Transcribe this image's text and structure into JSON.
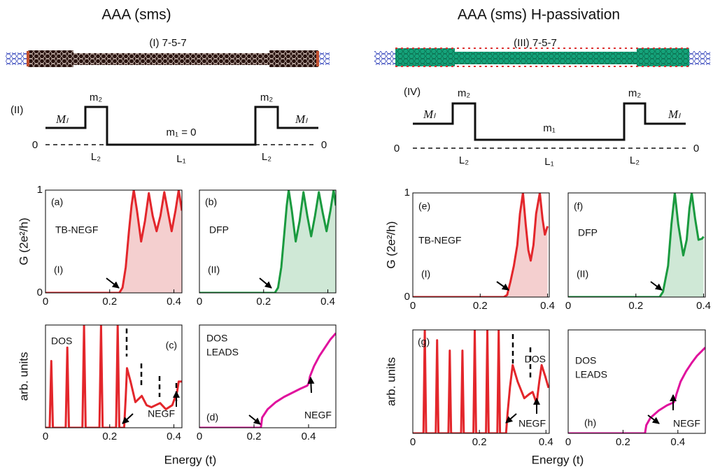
{
  "figures": [
    {
      "title": "AAA (sms)",
      "ribbon_label": "(I)  7-5-7",
      "schematic": {
        "label": "(II)",
        "lead": "Mₗ",
        "barrier": "m₂",
        "well": "m₁ = 0",
        "zero": "0",
        "barrier_width": "L₂",
        "well_width": "L₁"
      },
      "x_label": "Energy (t)"
    },
    {
      "title": "AAA (sms) H-passivation",
      "ribbon_label": "(III)  7-5-7",
      "schematic": {
        "label": "(IV)",
        "lead": "Mₗ",
        "barrier": "m₂",
        "well": "m₁",
        "zero": "0",
        "barrier_width": "L₂",
        "well_width": "L₁"
      },
      "x_label": "Energy (t)"
    }
  ],
  "chart_data": [
    {
      "type": "line",
      "annotations": [
        "(a)",
        "TB-NEGF",
        "(I)"
      ],
      "ylabel": "G (2e²/h)",
      "color": "#e3262b",
      "fill_color": "#f4cfcf",
      "x": [
        0,
        0.2,
        0.23,
        0.24,
        0.25,
        0.26,
        0.268,
        0.275,
        0.285,
        0.298,
        0.31,
        0.322,
        0.334,
        0.346,
        0.358,
        0.37,
        0.382,
        0.393,
        0.405,
        0.415,
        0.425
      ],
      "values": [
        0,
        0,
        0,
        0.05,
        0.25,
        0.6,
        0.85,
        1.0,
        0.8,
        0.5,
        0.7,
        0.97,
        0.75,
        0.6,
        0.75,
        0.98,
        0.78,
        0.6,
        0.8,
        1.0,
        0.8
      ],
      "xlim": [
        0,
        0.425
      ],
      "ylim": [
        0,
        1
      ],
      "xticks": [
        0,
        0.2,
        0.4
      ],
      "yticks": [
        0,
        1
      ]
    },
    {
      "type": "line",
      "annotations": [
        "(b)",
        "DFP",
        "(II)"
      ],
      "color": "#1a9a3f",
      "fill_color": "#cfe8d6",
      "x": [
        0,
        0.2,
        0.235,
        0.245,
        0.255,
        0.265,
        0.272,
        0.278,
        0.288,
        0.3,
        0.312,
        0.324,
        0.336,
        0.348,
        0.36,
        0.372,
        0.384,
        0.396,
        0.408,
        0.418,
        0.425
      ],
      "values": [
        0,
        0,
        0,
        0.05,
        0.25,
        0.6,
        0.85,
        1.0,
        0.8,
        0.5,
        0.7,
        0.98,
        0.75,
        0.55,
        0.75,
        0.98,
        0.78,
        0.6,
        0.8,
        1.0,
        0.85
      ],
      "xlim": [
        0,
        0.425
      ],
      "ylim": [
        0,
        1
      ],
      "xticks": [
        0,
        0.2,
        0.4
      ]
    },
    {
      "type": "line",
      "annotations": [
        "DOS",
        "(c)",
        "NEGF"
      ],
      "ylabel": "arb. units",
      "color": "#e3262b",
      "x": [
        0,
        0.013,
        0.018,
        0.023,
        0.063,
        0.068,
        0.073,
        0.115,
        0.12,
        0.125,
        0.168,
        0.173,
        0.178,
        0.22,
        0.225,
        0.23,
        0.245,
        0.25,
        0.254,
        0.265,
        0.28,
        0.3,
        0.315,
        0.33,
        0.357,
        0.375,
        0.395,
        0.41,
        0.415,
        0.42,
        0.425
      ],
      "values": [
        0,
        0,
        0.65,
        0,
        0,
        0.78,
        0,
        0,
        1,
        0,
        0,
        1,
        0,
        0,
        1,
        0,
        0,
        0.3,
        0.58,
        0.45,
        0.25,
        0.31,
        0.22,
        0.2,
        0.24,
        0.18,
        0.22,
        0.35,
        0.45,
        0.45,
        0.45
      ],
      "xlim": [
        0,
        0.425
      ],
      "ylim": [
        0,
        1
      ],
      "xticks": [
        0,
        0.2,
        0.4
      ]
    },
    {
      "type": "line",
      "annotations": [
        "DOS",
        "LEADS",
        "(d)",
        "NEGF"
      ],
      "color": "#e0119d",
      "x": [
        0,
        0.1,
        0.2,
        0.225,
        0.23,
        0.25,
        0.28,
        0.31,
        0.34,
        0.37,
        0.395,
        0.4,
        0.405,
        0.42,
        0.44,
        0.46,
        0.48,
        0.5
      ],
      "values": [
        0,
        0,
        0,
        0,
        0.1,
        0.18,
        0.25,
        0.3,
        0.34,
        0.38,
        0.41,
        0.43,
        0.5,
        0.6,
        0.7,
        0.78,
        0.86,
        0.92
      ],
      "xlim": [
        0,
        0.5
      ],
      "ylim": [
        0,
        1
      ],
      "xticks": [
        0,
        0.2,
        0.4
      ]
    },
    {
      "type": "line",
      "annotations": [
        "(e)",
        "TB-NEGF",
        "(I)"
      ],
      "ylabel": "G (2e²/h)",
      "color": "#e3262b",
      "fill_color": "#f4cfcf",
      "x": [
        0,
        0.2,
        0.27,
        0.28,
        0.29,
        0.3,
        0.31,
        0.318,
        0.327,
        0.335,
        0.343,
        0.35,
        0.358,
        0.366,
        0.377,
        0.385,
        0.392,
        0.4
      ],
      "values": [
        0,
        0,
        0,
        0.02,
        0.15,
        0.3,
        0.5,
        0.8,
        1.0,
        0.7,
        0.45,
        0.35,
        0.5,
        0.8,
        1.0,
        0.75,
        0.6,
        0.68
      ],
      "xlim": [
        0,
        0.405
      ],
      "ylim": [
        0,
        1
      ],
      "xticks": [
        0,
        0.2,
        0.4
      ],
      "yticks": [
        0,
        1
      ]
    },
    {
      "type": "line",
      "annotations": [
        "(f)",
        "DFP",
        "(II)"
      ],
      "color": "#1a9a3f",
      "fill_color": "#cfe8d6",
      "x": [
        0,
        0.2,
        0.27,
        0.28,
        0.295,
        0.305,
        0.315,
        0.325,
        0.34,
        0.35,
        0.358,
        0.365,
        0.375,
        0.385,
        0.395,
        0.4
      ],
      "values": [
        0,
        0,
        0,
        0.05,
        0.3,
        0.7,
        1.0,
        0.7,
        0.4,
        0.55,
        0.85,
        1.0,
        0.75,
        0.55,
        0.56,
        0.58
      ],
      "xlim": [
        0,
        0.405
      ],
      "ylim": [
        0,
        1
      ],
      "xticks": [
        0,
        0.2,
        0.4
      ]
    },
    {
      "type": "line",
      "annotations": [
        "(g)",
        "DOS",
        "NEGF"
      ],
      "ylabel": "arb. units",
      "color": "#e3262b",
      "x": [
        0,
        0.032,
        0.036,
        0.04,
        0.069,
        0.073,
        0.077,
        0.107,
        0.111,
        0.115,
        0.145,
        0.149,
        0.153,
        0.182,
        0.186,
        0.19,
        0.22,
        0.224,
        0.228,
        0.254,
        0.258,
        0.262,
        0.28,
        0.285,
        0.292,
        0.3,
        0.315,
        0.335,
        0.35,
        0.36,
        0.372,
        0.38,
        0.387,
        0.398,
        0.408
      ],
      "values": [
        0,
        0,
        1,
        0,
        0,
        0.9,
        0,
        0,
        0.8,
        0,
        0,
        0.8,
        0,
        0,
        1,
        0,
        0,
        1,
        0,
        0,
        1,
        0,
        0,
        0.2,
        0.45,
        0.66,
        0.5,
        0.34,
        0.38,
        0.4,
        0.29,
        0.5,
        0.66,
        0.55,
        0.44
      ],
      "xlim": [
        0,
        0.41
      ],
      "ylim": [
        0,
        1
      ],
      "xticks": [
        0,
        0.2,
        0.4
      ]
    },
    {
      "type": "line",
      "annotations": [
        "DOS",
        "LEADS",
        "(h)",
        "NEGF"
      ],
      "color": "#e0119d",
      "x": [
        0,
        0.1,
        0.2,
        0.28,
        0.285,
        0.3,
        0.33,
        0.36,
        0.385,
        0.39,
        0.395,
        0.41,
        0.43,
        0.45,
        0.47,
        0.5
      ],
      "values": [
        0,
        0,
        0,
        0,
        0.08,
        0.15,
        0.22,
        0.27,
        0.3,
        0.33,
        0.38,
        0.5,
        0.6,
        0.68,
        0.75,
        0.83
      ],
      "xlim": [
        0,
        0.5
      ],
      "ylim": [
        0,
        1
      ],
      "xticks": [
        0,
        0.2,
        0.4
      ]
    }
  ]
}
